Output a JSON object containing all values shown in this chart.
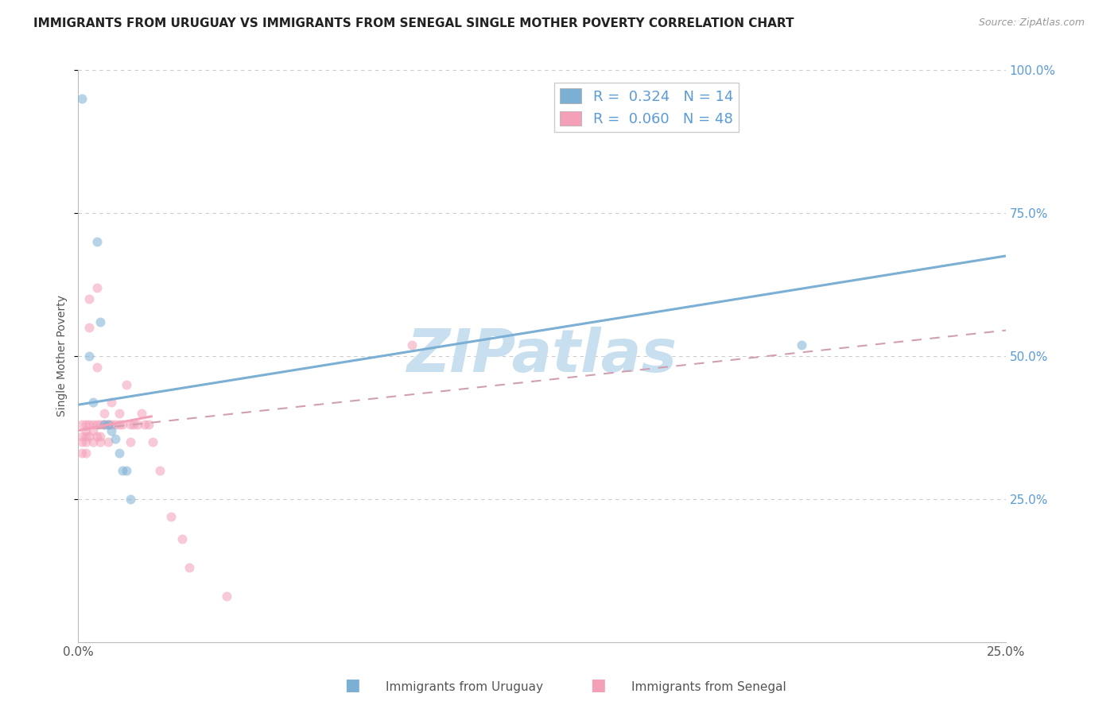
{
  "title": "IMMIGRANTS FROM URUGUAY VS IMMIGRANTS FROM SENEGAL SINGLE MOTHER POVERTY CORRELATION CHART",
  "source": "Source: ZipAtlas.com",
  "ylabel": "Single Mother Poverty",
  "xlim": [
    0,
    0.25
  ],
  "ylim": [
    0,
    1.0
  ],
  "background_color": "#ffffff",
  "watermark": "ZIPatlas",
  "watermark_color": "#c8dff0",
  "grid_color": "#cccccc",
  "uruguay_color": "#7bafd4",
  "senegal_color": "#f4a0b8",
  "title_fontsize": 11,
  "axis_label_fontsize": 10,
  "tick_fontsize": 11,
  "scatter_size": 75,
  "scatter_alpha": 0.55,
  "line_width": 2.2,
  "uruguay_R": "0.324",
  "uruguay_N": "14",
  "senegal_R": "0.060",
  "senegal_N": "48",
  "uruguay_line_x": [
    0.0,
    0.25
  ],
  "uruguay_line_y": [
    0.415,
    0.675
  ],
  "senegal_solid_line_x": [
    0.0,
    0.02
  ],
  "senegal_solid_line_y": [
    0.37,
    0.395
  ],
  "senegal_dashed_line_x": [
    0.0,
    0.25
  ],
  "senegal_dashed_line_y": [
    0.37,
    0.545
  ],
  "uruguay_scatter_x": [
    0.003,
    0.004,
    0.005,
    0.006,
    0.007,
    0.008,
    0.009,
    0.01,
    0.011,
    0.012,
    0.013,
    0.014,
    0.195,
    0.001
  ],
  "uruguay_scatter_y": [
    0.5,
    0.42,
    0.7,
    0.56,
    0.38,
    0.38,
    0.37,
    0.355,
    0.33,
    0.3,
    0.3,
    0.25,
    0.52,
    0.95
  ],
  "senegal_scatter_x": [
    0.001,
    0.001,
    0.001,
    0.001,
    0.002,
    0.002,
    0.002,
    0.002,
    0.002,
    0.003,
    0.003,
    0.003,
    0.003,
    0.004,
    0.004,
    0.004,
    0.005,
    0.005,
    0.005,
    0.005,
    0.006,
    0.006,
    0.006,
    0.007,
    0.007,
    0.008,
    0.008,
    0.009,
    0.009,
    0.01,
    0.011,
    0.011,
    0.012,
    0.013,
    0.014,
    0.014,
    0.015,
    0.016,
    0.017,
    0.018,
    0.019,
    0.02,
    0.022,
    0.025,
    0.028,
    0.03,
    0.04,
    0.09
  ],
  "senegal_scatter_y": [
    0.38,
    0.36,
    0.35,
    0.33,
    0.38,
    0.37,
    0.36,
    0.35,
    0.33,
    0.6,
    0.55,
    0.38,
    0.36,
    0.38,
    0.37,
    0.35,
    0.62,
    0.48,
    0.38,
    0.36,
    0.38,
    0.36,
    0.35,
    0.4,
    0.38,
    0.38,
    0.35,
    0.42,
    0.38,
    0.38,
    0.4,
    0.38,
    0.38,
    0.45,
    0.38,
    0.35,
    0.38,
    0.38,
    0.4,
    0.38,
    0.38,
    0.35,
    0.3,
    0.22,
    0.18,
    0.13,
    0.08,
    0.52
  ],
  "right_ytick_color": "#5b9bd5",
  "right_ytick_labels": [
    "25.0%",
    "50.0%",
    "75.0%",
    "100.0%"
  ],
  "right_ytick_vals": [
    0.25,
    0.5,
    0.75,
    1.0
  ],
  "bottom_legend_uruguay": "Immigrants from Uruguay",
  "bottom_legend_senegal": "Immigrants from Senegal"
}
